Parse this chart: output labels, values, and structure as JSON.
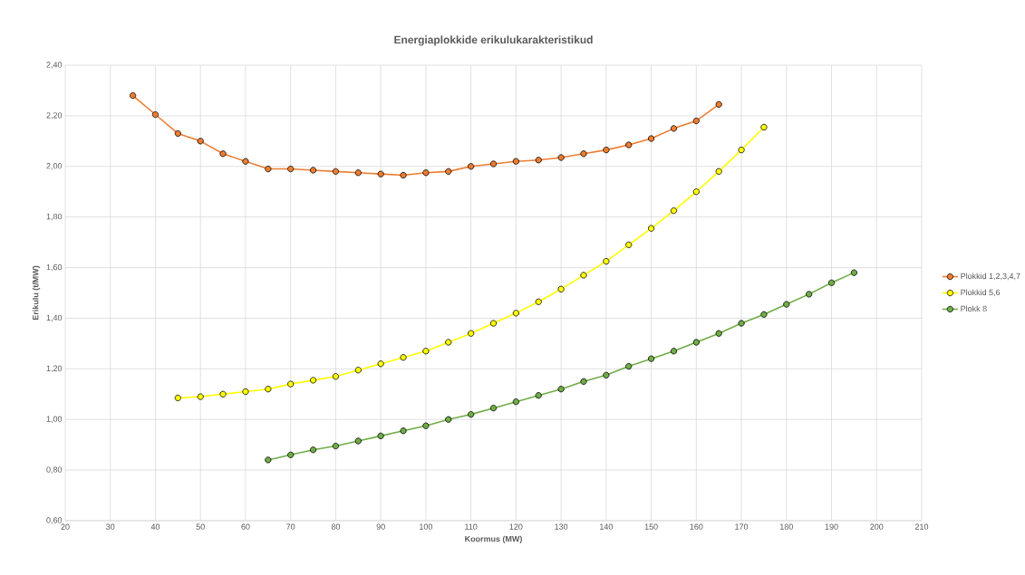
{
  "chart_data": {
    "type": "line",
    "title": "Energiaplokkide erikulukarakteristikud",
    "xlabel": "Koormus (MW)",
    "ylabel": "Erikulu (t/MW)",
    "series": [
      {
        "name": "Plokkid 1,2,3,4,7",
        "color": "#ed7d31",
        "x": [
          35,
          40,
          45,
          50,
          55,
          60,
          65,
          70,
          75,
          80,
          85,
          90,
          95,
          100,
          105,
          110,
          115,
          120,
          125,
          130,
          135,
          140,
          145,
          150,
          155,
          160,
          165
        ],
        "values": [
          2.28,
          2.205,
          2.13,
          2.1,
          2.05,
          2.02,
          1.99,
          1.99,
          1.985,
          1.98,
          1.975,
          1.97,
          1.965,
          1.975,
          1.98,
          2.0,
          2.01,
          2.02,
          2.025,
          2.035,
          2.05,
          2.065,
          2.085,
          2.11,
          2.15,
          2.18,
          2.245
        ]
      },
      {
        "name": "Plokkid 5,6",
        "color": "#ffff00",
        "x": [
          45,
          50,
          55,
          60,
          65,
          70,
          75,
          80,
          85,
          90,
          95,
          100,
          105,
          110,
          115,
          120,
          125,
          130,
          135,
          140,
          145,
          150,
          155,
          160,
          165,
          170,
          175
        ],
        "values": [
          1.085,
          1.09,
          1.1,
          1.11,
          1.12,
          1.14,
          1.155,
          1.17,
          1.195,
          1.22,
          1.245,
          1.27,
          1.305,
          1.34,
          1.38,
          1.42,
          1.465,
          1.515,
          1.57,
          1.625,
          1.69,
          1.755,
          1.825,
          1.9,
          1.98,
          2.065,
          2.155
        ]
      },
      {
        "name": "Plokk 8",
        "color": "#70ad47",
        "x": [
          65,
          70,
          75,
          80,
          85,
          90,
          95,
          100,
          105,
          110,
          115,
          120,
          125,
          130,
          135,
          140,
          145,
          150,
          155,
          160,
          165,
          170,
          175,
          180,
          185,
          190,
          195
        ],
        "values": [
          0.84,
          0.86,
          0.88,
          0.895,
          0.915,
          0.935,
          0.955,
          0.975,
          1.0,
          1.02,
          1.045,
          1.07,
          1.095,
          1.12,
          1.15,
          1.175,
          1.21,
          1.24,
          1.27,
          1.305,
          1.34,
          1.38,
          1.415,
          1.455,
          1.495,
          1.54,
          1.58
        ]
      }
    ],
    "xlim": [
      20,
      210
    ],
    "xticks": [
      20,
      30,
      40,
      50,
      60,
      70,
      80,
      90,
      100,
      110,
      120,
      130,
      140,
      150,
      160,
      170,
      180,
      190,
      200,
      210
    ],
    "ylim": [
      0.6,
      2.4
    ],
    "yticks": [
      {
        "value": 0.6,
        "label": "0,60"
      },
      {
        "value": 0.8,
        "label": "0,80"
      },
      {
        "value": 1.0,
        "label": "1,00"
      },
      {
        "value": 1.2,
        "label": "1,20"
      },
      {
        "value": 1.4,
        "label": "1,40"
      },
      {
        "value": 1.6,
        "label": "1,60"
      },
      {
        "value": 1.8,
        "label": "1,80"
      },
      {
        "value": 2.0,
        "label": "2,00"
      },
      {
        "value": 2.2,
        "label": "2,20"
      },
      {
        "value": 2.4,
        "label": "2,40"
      }
    ],
    "grid": true,
    "legend": "right",
    "marker": "circle",
    "line_style": "solid"
  }
}
